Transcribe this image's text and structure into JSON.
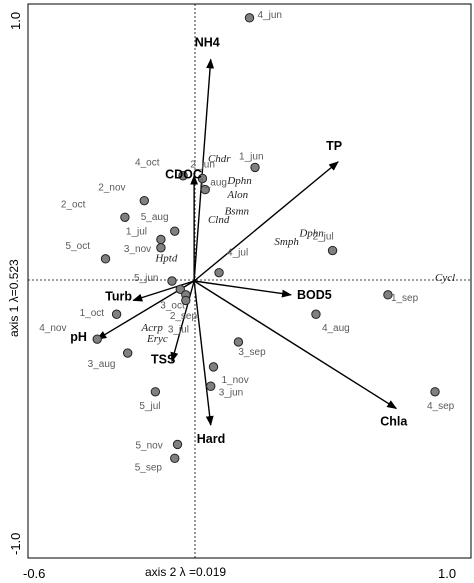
{
  "chart_data": {
    "type": "scatter",
    "xlabel": "axis 2 λ =0.019",
    "ylabel": "axis 1 λ=0.523",
    "xlim": [
      -0.6,
      1.0
    ],
    "ylim": [
      -1.0,
      1.0
    ],
    "x_tick_labels": [
      {
        "value": -0.6,
        "label": "-0.6"
      },
      {
        "value": 1.0,
        "label": "1.0"
      }
    ],
    "y_tick_labels": [
      {
        "value": 1.0,
        "label": "1.0"
      },
      {
        "value": -1.0,
        "label": "-1.0"
      }
    ],
    "sites": [
      {
        "label": "4_jun",
        "x": 0.2,
        "y": 0.95
      },
      {
        "label": "1_jun",
        "x": 0.22,
        "y": 0.41
      },
      {
        "label": "2_jun",
        "x": 0.03,
        "y": 0.37
      },
      {
        "label": "1_aug",
        "x": 0.04,
        "y": 0.33
      },
      {
        "label": "4_oct",
        "x": -0.04,
        "y": 0.38
      },
      {
        "label": "2_nov",
        "x": -0.18,
        "y": 0.29
      },
      {
        "label": "2_oct",
        "x": -0.25,
        "y": 0.23
      },
      {
        "label": "5_aug",
        "x": -0.07,
        "y": 0.18
      },
      {
        "label": "1_jul",
        "x": -0.12,
        "y": 0.15
      },
      {
        "label": "3_nov",
        "x": -0.12,
        "y": 0.12
      },
      {
        "label": "5_oct",
        "x": -0.32,
        "y": 0.08
      },
      {
        "label": "4_jul",
        "x": 0.09,
        "y": 0.03
      },
      {
        "label": "5_jun",
        "x": -0.08,
        "y": 0.0
      },
      {
        "label": "3_oct",
        "x": -0.05,
        "y": -0.03
      },
      {
        "label": "2_sep",
        "x": -0.03,
        "y": -0.05
      },
      {
        "label": "3_jul",
        "x": -0.03,
        "y": -0.07
      },
      {
        "label": "2_jul",
        "x": 0.5,
        "y": 0.11
      },
      {
        "label": "1_sep",
        "x": 0.7,
        "y": -0.05
      },
      {
        "label": "4_aug",
        "x": 0.44,
        "y": -0.12
      },
      {
        "label": "1_oct",
        "x": -0.28,
        "y": -0.12
      },
      {
        "label": "4_nov",
        "x": -0.35,
        "y": -0.21
      },
      {
        "label": "3_aug",
        "x": -0.24,
        "y": -0.26
      },
      {
        "label": "3_sep",
        "x": 0.16,
        "y": -0.22
      },
      {
        "label": "1_nov",
        "x": 0.07,
        "y": -0.31
      },
      {
        "label": "3_jun",
        "x": 0.06,
        "y": -0.38
      },
      {
        "label": "5_jul",
        "x": -0.14,
        "y": -0.4
      },
      {
        "label": "4_sep",
        "x": 0.87,
        "y": -0.4
      },
      {
        "label": "5_nov",
        "x": -0.06,
        "y": -0.59
      },
      {
        "label": "5_sep",
        "x": -0.07,
        "y": -0.64
      }
    ],
    "environment": [
      {
        "label": "NH4",
        "x": 0.06,
        "y": 0.8
      },
      {
        "label": "TP",
        "x": 0.52,
        "y": 0.43
      },
      {
        "label": "CDOC",
        "x": 0.0,
        "y": 0.38
      },
      {
        "label": "BOD5",
        "x": 0.35,
        "y": -0.05
      },
      {
        "label": "Turb",
        "x": -0.22,
        "y": -0.07
      },
      {
        "label": "pH",
        "x": -0.35,
        "y": -0.21
      },
      {
        "label": "TSS",
        "x": -0.08,
        "y": -0.29
      },
      {
        "label": "Hard",
        "x": 0.06,
        "y": -0.52
      },
      {
        "label": "Chla",
        "x": 0.73,
        "y": -0.46
      }
    ],
    "species": [
      {
        "label": "Chdr",
        "x": 0.05,
        "y": 0.43
      },
      {
        "label": "Dphn",
        "x": 0.12,
        "y": 0.35
      },
      {
        "label": "Alon",
        "x": 0.12,
        "y": 0.3
      },
      {
        "label": "Bsmn",
        "x": 0.11,
        "y": 0.24
      },
      {
        "label": "Clnd",
        "x": 0.05,
        "y": 0.21
      },
      {
        "label": "Dphn",
        "x": 0.38,
        "y": 0.16
      },
      {
        "label": "Smph",
        "x": 0.29,
        "y": 0.13
      },
      {
        "label": "Hptd",
        "x": -0.14,
        "y": 0.07
      },
      {
        "label": "Cycl",
        "x": 0.87,
        "y": 0.0
      },
      {
        "label": "Acrp",
        "x": -0.19,
        "y": -0.18
      },
      {
        "label": "Eryc",
        "x": -0.17,
        "y": -0.22
      }
    ]
  }
}
